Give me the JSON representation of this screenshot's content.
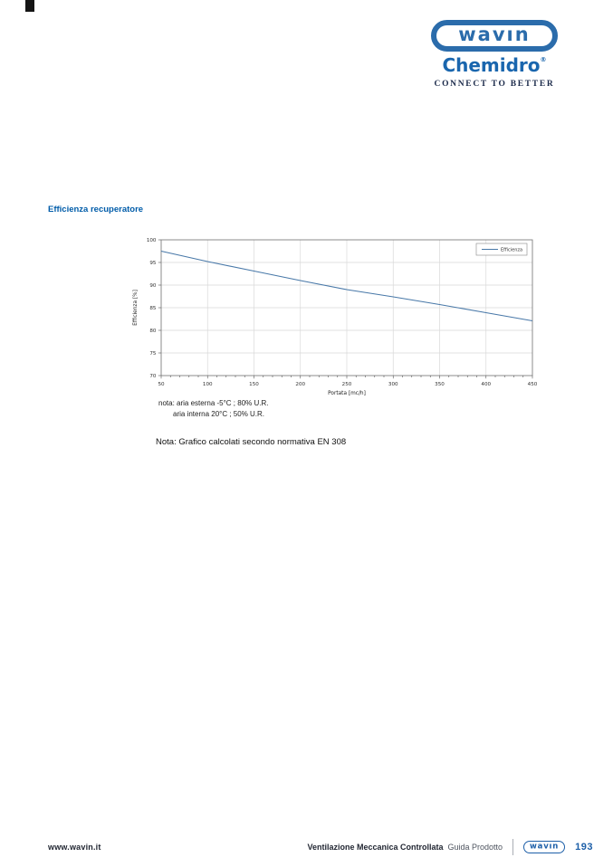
{
  "header": {
    "wavin_logo_text": "wavın",
    "chemidro_logo_text": "Chemidro",
    "chemidro_reg": "®",
    "tagline": "CONNECT TO BETTER"
  },
  "section": {
    "heading": "Efficienza recuperatore"
  },
  "chart_data": {
    "type": "line",
    "title": "",
    "xlabel": "Portata [mc/h]",
    "ylabel": "Efficienza [%]",
    "xlim": [
      50,
      450
    ],
    "ylim": [
      70,
      100
    ],
    "x_ticks": [
      50,
      100,
      150,
      200,
      250,
      300,
      350,
      400,
      450
    ],
    "y_ticks": [
      70,
      75,
      80,
      85,
      90,
      95,
      100
    ],
    "x_minor_step": 10,
    "grid": true,
    "legend": {
      "position": "top-right",
      "entries": [
        "Efficienza"
      ]
    },
    "series": [
      {
        "name": "Efficienza",
        "color": "#4878a8",
        "x": [
          50,
          100,
          150,
          200,
          250,
          300,
          350,
          400,
          450
        ],
        "y": [
          97.5,
          95.2,
          93.1,
          91.0,
          89.0,
          87.4,
          85.7,
          83.9,
          82.1
        ]
      }
    ],
    "colors": {
      "grid": "#d9d9d9",
      "frame": "#7f7f7f",
      "tick_text": "#333333",
      "legend_border": "#888888"
    }
  },
  "notes": {
    "line1": "nota: aria esterna -5°C ; 80% U.R.",
    "line2": "aria interna 20°C ; 50% U.R.",
    "main": "Nota: Grafico calcolati secondo normativa EN 308"
  },
  "footer": {
    "website": "www.wavin.it",
    "doc_title": "Ventilazione Meccanica Controllata",
    "doc_subtitle": "Guida Prodotto",
    "logo_text": "wavın",
    "page_number": "193"
  }
}
